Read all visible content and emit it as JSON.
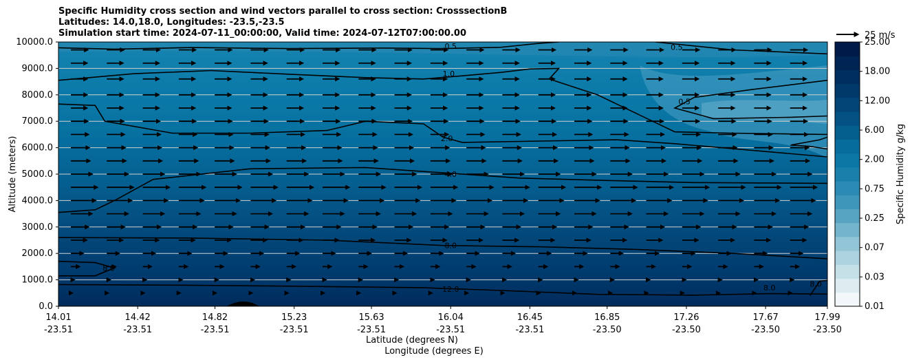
{
  "chart_data": {
    "type": "contour",
    "title_lines": [
      "Specific Humidity cross section and wind vectors parallel to cross section: CrosssectionB",
      "Latitudes: 14.0,18.0, Longitudes: -23.5,-23.5",
      "Simulation start time: 2024-07-11_00:00:00, Valid time: 2024-07-12T07:00:00.00"
    ],
    "xlabel_lat": "Latitude (degrees N)",
    "xlabel_lon": "Longitude (degrees E)",
    "ylabel": "Altitude (meters)",
    "ylim": [
      0,
      10000
    ],
    "xlim": [
      14.01,
      17.99
    ],
    "x_ticks": [
      {
        "lat": "14.01",
        "lon": "-23.51",
        "pos": 14.01
      },
      {
        "lat": "14.42",
        "lon": "-23.51",
        "pos": 14.42
      },
      {
        "lat": "14.82",
        "lon": "-23.51",
        "pos": 14.82
      },
      {
        "lat": "15.23",
        "lon": "-23.51",
        "pos": 15.23
      },
      {
        "lat": "15.63",
        "lon": "-23.51",
        "pos": 15.63
      },
      {
        "lat": "16.04",
        "lon": "-23.51",
        "pos": 16.04
      },
      {
        "lat": "16.45",
        "lon": "-23.51",
        "pos": 16.45
      },
      {
        "lat": "16.85",
        "lon": "-23.50",
        "pos": 16.85
      },
      {
        "lat": "17.26",
        "lon": "-23.50",
        "pos": 17.26
      },
      {
        "lat": "17.67",
        "lon": "-23.50",
        "pos": 17.67
      },
      {
        "lat": "17.99",
        "lon": "-23.50",
        "pos": 17.99
      }
    ],
    "y_ticks": [
      "0.0",
      "1000.0",
      "2000.0",
      "3000.0",
      "4000.0",
      "5000.0",
      "6000.0",
      "7000.0",
      "8000.0",
      "9000.0",
      "10000.0"
    ],
    "y_tick_values": [
      0,
      1000,
      2000,
      3000,
      4000,
      5000,
      6000,
      7000,
      8000,
      9000,
      10000
    ],
    "colorbar": {
      "label": "Specific Humidity g/kg",
      "levels": [
        0.01,
        0.02,
        0.03,
        0.05,
        0.07,
        0.1,
        0.25,
        0.5,
        0.75,
        1.0,
        2.0,
        4.0,
        6.0,
        8.0,
        12.0,
        15.0,
        18.0,
        21.0,
        25.0
      ],
      "tick_labels": [
        "0.01",
        "0.03",
        "0.07",
        "0.25",
        "0.75",
        "2.00",
        "6.00",
        "12.00",
        "18.00",
        "25.00"
      ],
      "colors": [
        "#f2f8fa",
        "#dcecf0",
        "#c6e0e8",
        "#acd3df",
        "#92c5d6",
        "#74b5cc",
        "#57a4c2",
        "#3f96bb",
        "#2a8ab3",
        "#1a80ab",
        "#0b77a5",
        "#056c9c",
        "#045f8f",
        "#035283",
        "#024576",
        "#01396a",
        "#002e5e",
        "#002453",
        "#001a47"
      ]
    },
    "contour_labels": [
      {
        "text": "0.5",
        "x": 16.04,
        "y": 9850
      },
      {
        "text": "0.5",
        "x": 17.21,
        "y": 9800
      },
      {
        "text": "0.5",
        "x": 17.25,
        "y": 7750
      },
      {
        "text": "1.0",
        "x": 16.03,
        "y": 8800
      },
      {
        "text": "2.0",
        "x": 16.02,
        "y": 6350
      },
      {
        "text": "4.0",
        "x": 16.04,
        "y": 5000
      },
      {
        "text": "8.0",
        "x": 16.04,
        "y": 2300
      },
      {
        "text": "8.0",
        "x": 14.27,
        "y": 1450
      },
      {
        "text": "8.0",
        "x": 17.69,
        "y": 700
      },
      {
        "text": "8.0",
        "x": 17.93,
        "y": 850
      },
      {
        "text": "12.0",
        "x": 16.04,
        "y": 650
      }
    ],
    "contour_lines": [
      {
        "level": "0.5",
        "points": [
          [
            14.01,
            9780
          ],
          [
            14.3,
            9730
          ],
          [
            14.7,
            9790
          ],
          [
            15.2,
            9750
          ],
          [
            15.7,
            9770
          ],
          [
            16.0,
            9750
          ],
          [
            16.3,
            9800
          ],
          [
            16.5,
            9950
          ],
          [
            16.6,
            10000
          ]
        ]
      },
      {
        "level": "0.5",
        "points": [
          [
            17.1,
            10000
          ],
          [
            17.5,
            9700
          ],
          [
            17.99,
            9550
          ]
        ]
      },
      {
        "level": "0.5",
        "points": [
          [
            17.99,
            8550
          ],
          [
            17.6,
            8200
          ],
          [
            17.3,
            7900
          ],
          [
            17.2,
            7500
          ],
          [
            17.4,
            7100
          ],
          [
            17.8,
            7150
          ],
          [
            17.99,
            7200
          ]
        ]
      },
      {
        "level": "1.0",
        "points": [
          [
            14.01,
            8550
          ],
          [
            14.4,
            8800
          ],
          [
            14.8,
            8920
          ],
          [
            15.2,
            8780
          ],
          [
            15.6,
            8650
          ],
          [
            15.9,
            8600
          ],
          [
            16.1,
            8720
          ],
          [
            16.3,
            8850
          ],
          [
            16.45,
            8980
          ],
          [
            16.6,
            9000
          ],
          [
            16.55,
            8600
          ],
          [
            16.8,
            8000
          ],
          [
            17.0,
            7300
          ],
          [
            17.2,
            6600
          ],
          [
            17.5,
            6550
          ],
          [
            17.99,
            6500
          ]
        ]
      },
      {
        "level": "1.0",
        "points": [
          [
            17.99,
            5950
          ],
          [
            17.9,
            6050
          ],
          [
            17.8,
            6100
          ],
          [
            17.95,
            6300
          ],
          [
            17.99,
            6400
          ]
        ]
      },
      {
        "level": "2.0",
        "points": [
          [
            14.01,
            7650
          ],
          [
            14.2,
            7600
          ],
          [
            14.25,
            7000
          ],
          [
            14.6,
            6550
          ],
          [
            15.0,
            6550
          ],
          [
            15.4,
            6650
          ],
          [
            15.6,
            7000
          ],
          [
            15.9,
            6900
          ],
          [
            16.0,
            6400
          ],
          [
            16.1,
            6200
          ],
          [
            16.5,
            6250
          ],
          [
            16.9,
            6300
          ],
          [
            17.2,
            6150
          ],
          [
            17.6,
            5900
          ],
          [
            17.99,
            5650
          ]
        ]
      },
      {
        "level": "4.0",
        "points": [
          [
            14.01,
            3550
          ],
          [
            14.2,
            3650
          ],
          [
            14.3,
            4000
          ],
          [
            14.5,
            4800
          ],
          [
            15.0,
            5200
          ],
          [
            15.6,
            5250
          ],
          [
            16.0,
            5050
          ],
          [
            16.4,
            4850
          ],
          [
            16.9,
            4750
          ],
          [
            17.3,
            4680
          ],
          [
            17.99,
            4650
          ]
        ]
      },
      {
        "level": "8.0",
        "points": [
          [
            14.01,
            2600
          ],
          [
            14.7,
            2580
          ],
          [
            15.4,
            2500
          ],
          [
            16.0,
            2300
          ],
          [
            16.5,
            2250
          ],
          [
            17.0,
            2150
          ],
          [
            17.5,
            2000
          ],
          [
            17.99,
            1800
          ]
        ]
      },
      {
        "level": "8.0",
        "points": [
          [
            14.01,
            1700
          ],
          [
            14.2,
            1650
          ],
          [
            14.3,
            1450
          ],
          [
            14.2,
            1150
          ],
          [
            14.01,
            1150
          ]
        ]
      },
      {
        "level": "12.0",
        "points": [
          [
            14.01,
            820
          ],
          [
            14.6,
            800
          ],
          [
            15.2,
            760
          ],
          [
            15.9,
            700
          ],
          [
            16.3,
            600
          ],
          [
            16.8,
            450
          ],
          [
            17.3,
            420
          ],
          [
            17.7,
            480
          ],
          [
            17.99,
            460
          ]
        ]
      },
      {
        "level": "8.0",
        "points": [
          [
            17.9,
            400
          ],
          [
            17.95,
            950
          ],
          [
            17.99,
            980
          ]
        ]
      }
    ],
    "terrain": {
      "x_start": 14.88,
      "x_end": 15.05,
      "peak_x": 14.97,
      "peak_y": 200
    },
    "wind_reference": {
      "label": "25 m/s",
      "speed": 25
    },
    "wind_rows": [
      {
        "y": 9700,
        "speed": 4.8
      },
      {
        "y": 9200,
        "speed": 4.6
      },
      {
        "y": 8600,
        "speed": 4.6
      },
      {
        "y": 8000,
        "speed": 4.6
      },
      {
        "y": 7500,
        "speed": 4.6
      },
      {
        "y": 7000,
        "speed": 4.8
      },
      {
        "y": 6500,
        "speed": 5.0
      },
      {
        "y": 6000,
        "speed": 5.2
      },
      {
        "y": 5500,
        "speed": 5.4
      },
      {
        "y": 5000,
        "speed": 6.0
      },
      {
        "y": 4500,
        "speed": 7.5
      },
      {
        "y": 4000,
        "speed": 7.0
      },
      {
        "y": 3500,
        "speed": 6.0
      },
      {
        "y": 3000,
        "speed": 5.0
      },
      {
        "y": 2500,
        "speed": 4.5
      },
      {
        "y": 2000,
        "speed": 3.5
      },
      {
        "y": 1500,
        "speed": 2.5
      },
      {
        "y": 1000,
        "speed": 1.0
      },
      {
        "y": 500,
        "speed": 0.5
      }
    ]
  }
}
